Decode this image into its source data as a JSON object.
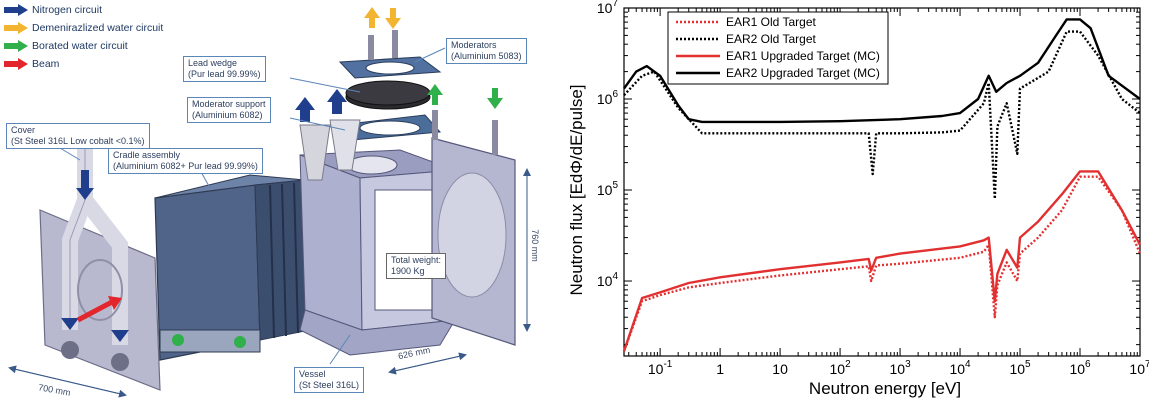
{
  "diagram": {
    "legend": [
      {
        "label": "Nitrogen circuit",
        "color": "#1f3f8c"
      },
      {
        "label": "Demenirazlized water circuit",
        "color": "#f2b431"
      },
      {
        "label": "Borated water circuit",
        "color": "#2fb04a"
      },
      {
        "label": "Beam",
        "color": "#e2262b"
      }
    ],
    "callouts": {
      "lead_wedge_1": "Lead wedge",
      "lead_wedge_2": "(Pur lead 99.99%)",
      "moderators_1": "Moderators",
      "moderators_2": "(Aluminium 5083)",
      "moderator_support_1": "Moderator support",
      "moderator_support_2": "(Aluminium 6082)",
      "cover_1": "Cover",
      "cover_2": "(St Steel 316L Low cobalt <0.1%)",
      "cradle_1": "Cradle assembly",
      "cradle_2": "(Aluminium 6082+ Pur lead 99.99%)",
      "weight_1": "Total weight:",
      "weight_2": "1900 Kg",
      "vessel_1": "Vessel",
      "vessel_2": "(St Steel 316L)"
    },
    "dimensions": {
      "width": "700 mm",
      "depth": "626 mm",
      "height": "760 mm"
    }
  },
  "chart_data": {
    "type": "line",
    "xlabel": "Neutron energy [eV]",
    "ylabel": "Neutron flux [EdΦ/dE/pulse]",
    "xscale": "log",
    "yscale": "log",
    "xlim": [
      0.025,
      10000000
    ],
    "ylim": [
      1500,
      10000000
    ],
    "x_ticks": [
      "10^-1",
      "1",
      "10",
      "10^2",
      "10^3",
      "10^4",
      "10^5",
      "10^6",
      "10^7"
    ],
    "y_ticks": [
      "10^4",
      "10^5",
      "10^6",
      "10^7"
    ],
    "legend_position": "top-left",
    "series": [
      {
        "name": "EAR1 Old Target",
        "color": "#e23030",
        "dash": "dotted",
        "x": [
          0.025,
          0.05,
          0.1,
          0.3,
          1,
          10,
          100,
          300,
          330,
          400,
          1000,
          10000,
          25000,
          30000,
          38000,
          42000,
          60000,
          90000,
          100000,
          200000,
          500000,
          1000000,
          2000000,
          5000000,
          10000000
        ],
        "y": [
          1700,
          6000,
          7000,
          8500,
          9500,
          11500,
          13500,
          14500,
          10000,
          14800,
          15500,
          18000,
          21000,
          25000,
          4000,
          9000,
          16000,
          10000,
          20000,
          30000,
          60000,
          140000,
          140000,
          60000,
          20000
        ]
      },
      {
        "name": "EAR2 Old Target",
        "color": "#000000",
        "dash": "dotted",
        "x": [
          0.025,
          0.05,
          0.08,
          0.2,
          0.5,
          1,
          10,
          100,
          300,
          350,
          400,
          1000,
          5000,
          10000,
          25000,
          30000,
          38000,
          42000,
          60000,
          90000,
          100000,
          300000,
          600000,
          1000000,
          2000000,
          5000000,
          10000000
        ],
        "y": [
          1100000,
          1800000,
          2000000,
          800000,
          420000,
          420000,
          420000,
          420000,
          420000,
          150000,
          420000,
          420000,
          430000,
          450000,
          900000,
          1500000,
          80000,
          500000,
          900000,
          250000,
          1300000,
          2000000,
          5500000,
          5500000,
          3000000,
          1000000,
          700000
        ]
      },
      {
        "name": "EAR1 Upgraded Target (MC)",
        "color": "#e23030",
        "dash": "solid",
        "x": [
          0.025,
          0.05,
          0.1,
          0.3,
          1,
          10,
          100,
          300,
          330,
          400,
          1000,
          10000,
          25000,
          30000,
          38000,
          42000,
          60000,
          90000,
          100000,
          200000,
          500000,
          1000000,
          2000000,
          5000000,
          10000000
        ],
        "y": [
          1700,
          6500,
          7500,
          9500,
          11000,
          13500,
          16000,
          17500,
          13000,
          18000,
          20000,
          24000,
          28000,
          30000,
          6000,
          12000,
          22000,
          14000,
          30000,
          45000,
          90000,
          160000,
          160000,
          60000,
          25000
        ]
      },
      {
        "name": "EAR2 Upgraded Target (MC)",
        "color": "#000000",
        "dash": "solid",
        "x": [
          0.025,
          0.04,
          0.06,
          0.1,
          0.2,
          0.3,
          0.5,
          1,
          10,
          100,
          1000,
          5000,
          10000,
          20000,
          30000,
          40000,
          60000,
          100000,
          200000,
          400000,
          600000,
          1000000,
          1500000,
          3000000,
          10000000
        ],
        "y": [
          1300000,
          2000000,
          2300000,
          1800000,
          850000,
          600000,
          560000,
          560000,
          560000,
          570000,
          600000,
          650000,
          700000,
          1000000,
          1800000,
          1200000,
          1500000,
          1800000,
          2500000,
          5000000,
          7500000,
          7500000,
          6000000,
          1800000,
          1000000
        ]
      }
    ]
  }
}
